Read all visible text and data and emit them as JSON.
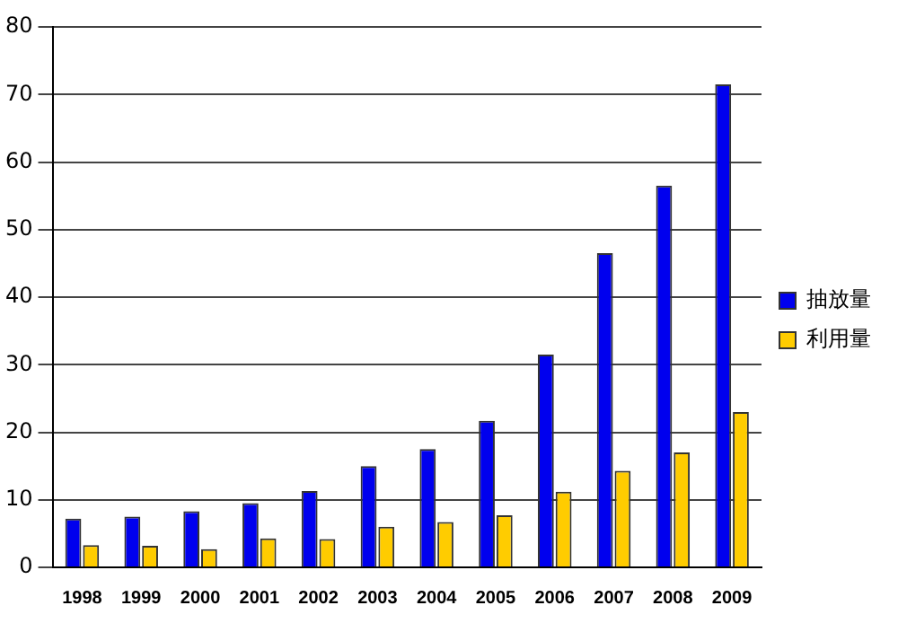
{
  "chart_data": {
    "type": "bar",
    "categories": [
      "1998",
      "1999",
      "2000",
      "2001",
      "2002",
      "2003",
      "2004",
      "2005",
      "2006",
      "2007",
      "2008",
      "2009"
    ],
    "series": [
      {
        "name": "抽放量",
        "color": "#0000ee",
        "values": [
          7.2,
          7.5,
          8.3,
          9.5,
          11.3,
          15,
          17.5,
          21.7,
          31.5,
          46.5,
          56.5,
          71.5
        ]
      },
      {
        "name": "利用量",
        "color": "#ffcc00",
        "values": [
          3.3,
          3.2,
          2.7,
          4.3,
          4.2,
          6,
          6.7,
          7.7,
          11.2,
          14.3,
          17,
          23
        ]
      }
    ],
    "ylim": [
      0,
      80
    ],
    "yticks": [
      0,
      10,
      20,
      30,
      40,
      50,
      60,
      70,
      80
    ],
    "grid": "y",
    "legend": "right"
  }
}
